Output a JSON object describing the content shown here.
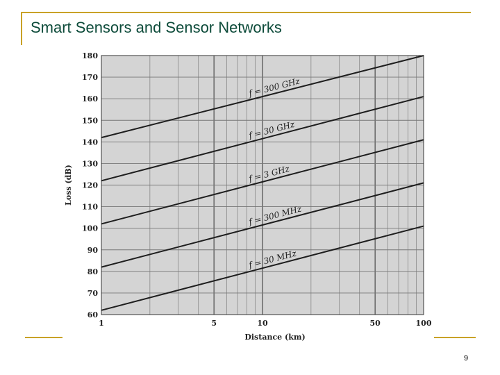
{
  "slide": {
    "title": "Smart Sensors and Sensor Networks",
    "page_number": "9"
  },
  "colors": {
    "accent_rule": "#c9a227",
    "title": "#0d4b3a",
    "plot_background": "#d4d4d4",
    "line": "#1e1e1e"
  },
  "chart_data": {
    "type": "line",
    "title": "",
    "xlabel": "Distance (km)",
    "ylabel": "Loss (dB)",
    "x_scale": "log",
    "xlim": [
      1,
      100
    ],
    "ylim": [
      60,
      180
    ],
    "x_ticks": [
      1,
      5,
      10,
      50,
      100
    ],
    "y_ticks": [
      60,
      70,
      80,
      90,
      100,
      110,
      120,
      130,
      140,
      150,
      160,
      170,
      180
    ],
    "grid": true,
    "series": [
      {
        "name": "f = 300 GHz",
        "x": [
          1,
          100
        ],
        "values": [
          142,
          180
        ]
      },
      {
        "name": "f = 30 GHz",
        "x": [
          1,
          100
        ],
        "values": [
          122,
          161
        ]
      },
      {
        "name": "f = 3 GHz",
        "x": [
          1,
          100
        ],
        "values": [
          102,
          141
        ]
      },
      {
        "name": "f = 300 MHz",
        "x": [
          1,
          100
        ],
        "values": [
          82,
          121
        ]
      },
      {
        "name": "f = 30 MHz",
        "x": [
          1,
          100
        ],
        "values": [
          62,
          101
        ]
      }
    ]
  }
}
